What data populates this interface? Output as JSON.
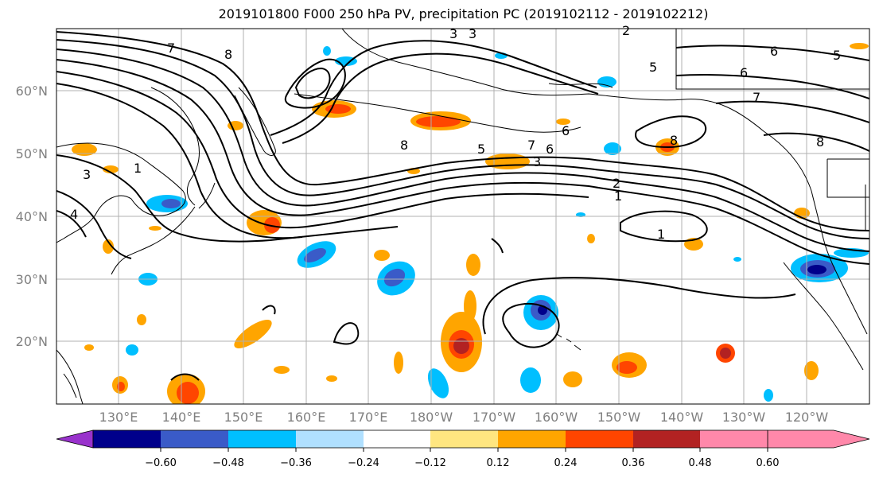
{
  "title": "2019101800 F000 250 hPa PV, precipitation PC (2019102112 - 2019102212)",
  "lat_labels": [
    "60°N",
    "50°N",
    "40°N",
    "30°N",
    "20°N"
  ],
  "lon_labels": [
    "130°E",
    "140°E",
    "150°E",
    "160°E",
    "170°E",
    "180°W",
    "170°W",
    "160°W",
    "150°W",
    "140°W",
    "130°W",
    "120°W"
  ],
  "contour_labels": [
    "7",
    "8",
    "3",
    "3",
    "2",
    "6",
    "5",
    "5",
    "6",
    "7",
    "8",
    "5",
    "7",
    "6",
    "8",
    "3",
    "2",
    "1",
    "1",
    "1",
    "3",
    "4",
    "6",
    "8"
  ],
  "colorbar": {
    "ticks": [
      "−0.60",
      "−0.48",
      "−0.36",
      "−0.24",
      "−0.12",
      "0.12",
      "0.24",
      "0.36",
      "0.48",
      "0.60"
    ],
    "colors": [
      "#9932cc",
      "#00008b",
      "#3a5bc8",
      "#00bfff",
      "#b0e0ff",
      "#ffffff",
      "#ffe680",
      "#ffa500",
      "#ff4500",
      "#b22222",
      "#ff88aa"
    ]
  }
}
